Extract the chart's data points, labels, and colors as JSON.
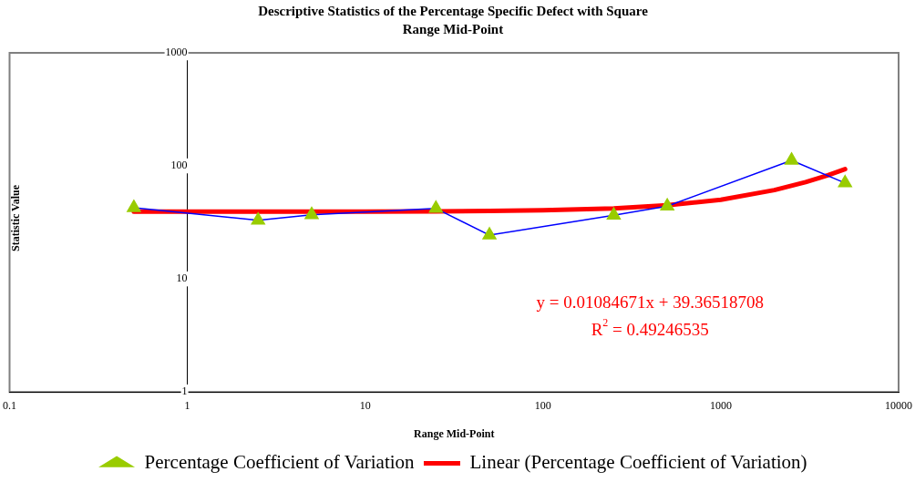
{
  "chart_data": {
    "type": "line",
    "title": "Descriptive Statistics of the Percentage Specific Defect with Square Range Mid-Point",
    "xlabel": "Range Mid-Point",
    "ylabel": "Statistic Value",
    "log": "xy",
    "xlim": [
      0.1,
      10000
    ],
    "xticks": [
      0.1,
      1,
      10,
      100,
      1000,
      10000
    ],
    "ylim": [
      1,
      1000
    ],
    "yticks": [
      1,
      10,
      100,
      1000
    ],
    "grid": false,
    "legend": "bottom",
    "series": [
      {
        "name": "Percentage Coefficient of Variation",
        "color": "#0000ff",
        "marker": "triangle",
        "x": [
          0.5,
          2.5,
          5,
          25,
          50,
          250,
          500,
          2500,
          5000
        ],
        "values": [
          42.7,
          33,
          37,
          42,
          24.4,
          36.6,
          44,
          112,
          70.6
        ]
      },
      {
        "name": "Linear (Percentage Coefficient of Variation)",
        "color": "#ff0000",
        "marker": "none",
        "x": [
          0.5,
          1,
          2,
          5,
          10,
          25,
          50,
          100,
          250,
          500,
          1000,
          2000,
          3000,
          4000,
          5000
        ],
        "values": [
          39.37,
          39.38,
          39.39,
          39.42,
          39.47,
          39.64,
          39.91,
          40.45,
          42.08,
          44.79,
          50.21,
          61.06,
          71.91,
          82.75,
          93.6
        ]
      }
    ],
    "annotations": [
      "y = 0.01084671x + 39.36518708",
      "R$^{2}$ = 0.49246535"
    ]
  }
}
